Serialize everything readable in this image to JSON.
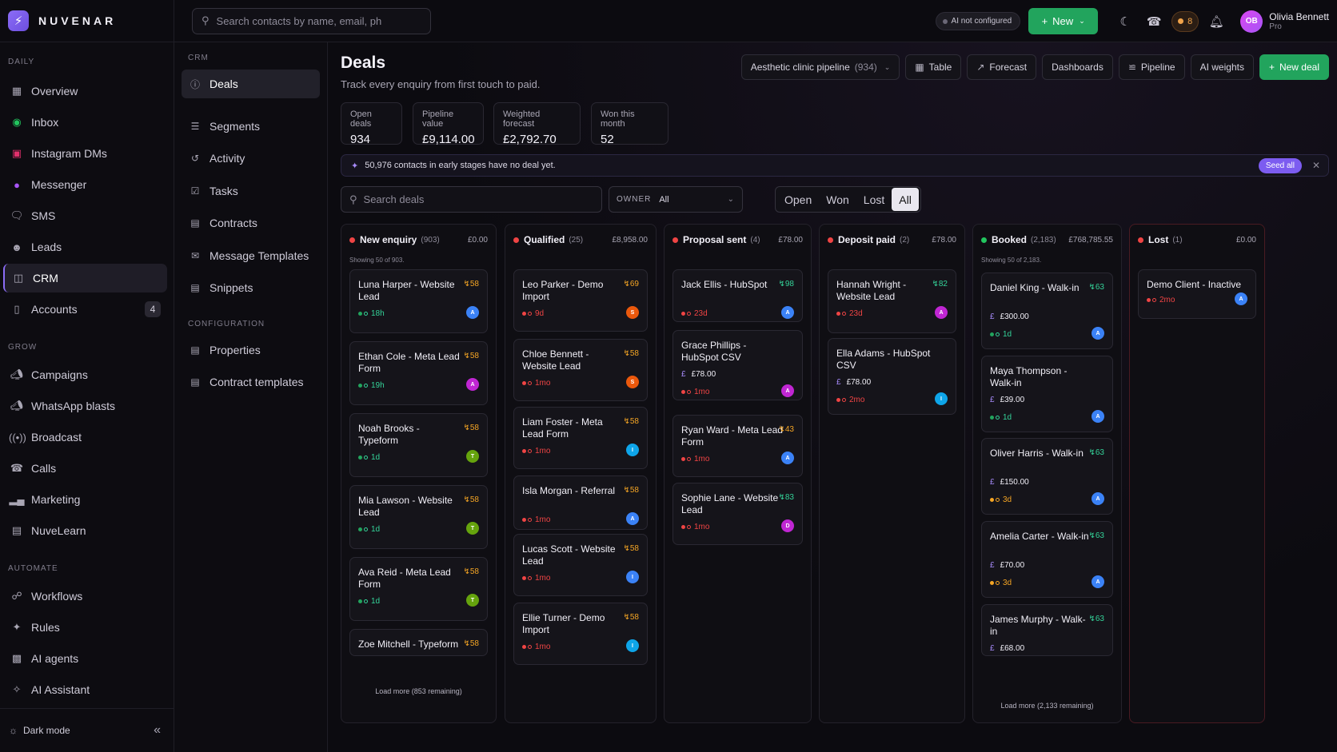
{
  "brand": {
    "name": "NUVENAR"
  },
  "topbar": {
    "search_placeholder": "Search contacts by name, email, ph",
    "ai_status": "AI not configured",
    "new_label": "New",
    "coin_count": "8",
    "user_initials": "OB",
    "user_name": "Olivia Bennett",
    "user_plan": "Pro"
  },
  "sidebar": {
    "sections": [
      {
        "label": "DAILY",
        "items": [
          {
            "label": "Overview",
            "icon": "grid-icon"
          },
          {
            "label": "Inbox",
            "icon": "whatsapp-icon"
          },
          {
            "label": "Instagram DMs",
            "icon": "instagram-icon"
          },
          {
            "label": "Messenger",
            "icon": "messenger-icon"
          },
          {
            "label": "SMS",
            "icon": "chat-bubble-icon"
          },
          {
            "label": "Leads",
            "icon": "users-icon"
          },
          {
            "label": "CRM",
            "icon": "briefcase-icon",
            "active": true
          },
          {
            "label": "Accounts",
            "icon": "phone-device-icon",
            "count": "4"
          }
        ]
      },
      {
        "label": "GROW",
        "items": [
          {
            "label": "Campaigns",
            "icon": "megaphone-icon"
          },
          {
            "label": "WhatsApp blasts",
            "icon": "megaphone-icon"
          },
          {
            "label": "Broadcast",
            "icon": "broadcast-icon"
          },
          {
            "label": "Calls",
            "icon": "phone-icon"
          },
          {
            "label": "Marketing",
            "icon": "bar-chart-icon"
          },
          {
            "label": "NuveLearn",
            "icon": "book-icon"
          }
        ]
      },
      {
        "label": "AUTOMATE",
        "items": [
          {
            "label": "Workflows",
            "icon": "workflow-icon"
          },
          {
            "label": "Rules",
            "icon": "sparkles-icon"
          },
          {
            "label": "AI agents",
            "icon": "robot-icon"
          },
          {
            "label": "AI Assistant",
            "icon": "sparkle-icon"
          }
        ]
      }
    ],
    "footer_label": "Dark mode"
  },
  "subnav": {
    "section_crm": "CRM",
    "crm_items": [
      {
        "label": "Deals",
        "active": true
      },
      {
        "label": "Segments"
      },
      {
        "label": "Activity"
      },
      {
        "label": "Tasks"
      },
      {
        "label": "Contracts"
      },
      {
        "label": "Message Templates"
      },
      {
        "label": "Snippets"
      }
    ],
    "section_config": "CONFIGURATION",
    "config_items": [
      {
        "label": "Properties"
      },
      {
        "label": "Contract templates"
      }
    ]
  },
  "page": {
    "title": "Deals",
    "subtitle": "Track every enquiry from first touch to paid.",
    "pipeline_label": "Aesthetic clinic pipeline",
    "pipeline_count": "(934)",
    "toolbar": {
      "table": "Table",
      "forecast": "Forecast",
      "dashboards": "Dashboards",
      "pipeline": "Pipeline",
      "ai_weights": "AI weights",
      "new_deal": "New deal"
    }
  },
  "stats": [
    {
      "label": "Open deals",
      "value": "934"
    },
    {
      "label": "Pipeline value",
      "value": "£9,114.00"
    },
    {
      "label": "Weighted forecast",
      "value": "£2,792.70"
    },
    {
      "label": "Won this month",
      "value": "52"
    }
  ],
  "banner": {
    "text": "50,976 contacts in early stages have no deal yet.",
    "action": "Seed all"
  },
  "filters": {
    "search_placeholder": "Search deals",
    "owner_key": "OWNER",
    "owner_value": "All",
    "status_options": [
      "Open",
      "Won",
      "Lost",
      "All"
    ],
    "status_selected": "All"
  },
  "colors": {
    "accent": "#8b6cf6",
    "green": "#22a45d",
    "red": "#ef4444",
    "amber": "#f5a524",
    "score_green": "#34d399"
  },
  "columns": [
    {
      "name": "New enquiry",
      "count": "(903)",
      "total": "£0.00",
      "dot": "#ef4444",
      "showing": "Showing 50 of 903.",
      "load_more": "Load more (853 remaining)",
      "cards": [
        {
          "title": "Luna Harper - Website Lead",
          "score": "58",
          "age": "18h",
          "status": "green",
          "avatar": "A",
          "av_color": "#3b82f6"
        },
        {
          "title": "Ethan Cole - Meta Lead Form",
          "score": "58",
          "age": "19h",
          "status": "green",
          "avatar": "A",
          "av_color": "#c026d3"
        },
        {
          "title": "Noah Brooks - Typeform",
          "score": "58",
          "age": "1d",
          "status": "green",
          "avatar": "T",
          "av_color": "#65a30d"
        },
        {
          "title": "Mia Lawson - Website Lead",
          "score": "58",
          "age": "1d",
          "status": "green",
          "avatar": "T",
          "av_color": "#65a30d"
        },
        {
          "title": "Ava Reid - Meta Lead Form",
          "score": "58",
          "age": "1d",
          "status": "green",
          "avatar": "T",
          "av_color": "#65a30d"
        },
        {
          "title": "Zoe Mitchell - Typeform",
          "score": "58"
        }
      ]
    },
    {
      "name": "Qualified",
      "count": "(25)",
      "total": "£8,958.00",
      "dot": "#ef4444",
      "cards": [
        {
          "title": "Leo Parker - Demo Import",
          "score": "69",
          "age": "9d",
          "status": "red",
          "avatar": "S",
          "av_color": "#ea580c"
        },
        {
          "title": "Chloe Bennett - Website Lead",
          "score": "58",
          "age": "1mo",
          "status": "red",
          "avatar": "S",
          "av_color": "#ea580c"
        },
        {
          "title": "Liam Foster - Meta Lead Form",
          "score": "58",
          "age": "1mo",
          "status": "red",
          "avatar": "I",
          "av_color": "#0ea5e9"
        },
        {
          "title": "Isla Morgan - Referral",
          "score": "58",
          "age": "1mo",
          "status": "red",
          "avatar": "A",
          "av_color": "#3b82f6"
        },
        {
          "title": "Lucas Scott - Website Lead",
          "score": "58",
          "age": "1mo",
          "status": "red",
          "avatar": "I",
          "av_color": "#3b82f6"
        },
        {
          "title": "Ellie Turner - Demo Import",
          "score": "58",
          "age": "1mo",
          "status": "red",
          "avatar": "I",
          "av_color": "#0ea5e9"
        }
      ]
    },
    {
      "name": "Proposal sent",
      "count": "(4)",
      "total": "£78.00",
      "dot": "#ef4444",
      "cards": [
        {
          "title": "Jack Ellis - HubSpot",
          "score": "98",
          "age": "23d",
          "status": "red",
          "avatar": "A",
          "av_color": "#3b82f6"
        },
        {
          "title": "Grace Phillips - HubSpot CSV",
          "amount": "£78.00",
          "age": "1mo",
          "status": "red",
          "avatar": "A",
          "av_color": "#c026d3"
        },
        {
          "title": "Ryan Ward - Meta Lead Form",
          "score": "43",
          "age": "1mo",
          "status": "red",
          "avatar": "A",
          "av_color": "#3b82f6"
        },
        {
          "title": "Sophie Lane - Website Lead",
          "score": "83",
          "age": "1mo",
          "status": "red",
          "avatar": "D",
          "av_color": "#c026d3"
        }
      ]
    },
    {
      "name": "Deposit paid",
      "count": "(2)",
      "total": "£78.00",
      "dot": "#ef4444",
      "cards": [
        {
          "title": "Hannah Wright - Website Lead",
          "score": "82",
          "age": "23d",
          "status": "red",
          "avatar": "A",
          "av_color": "#c026d3"
        },
        {
          "title": "Ella Adams - HubSpot CSV",
          "amount": "£78.00",
          "age": "2mo",
          "status": "red",
          "avatar": "I",
          "av_color": "#0ea5e9"
        }
      ]
    },
    {
      "name": "Booked",
      "count": "(2,183)",
      "total": "£768,785.55",
      "dot": "#22c55e",
      "showing": "Showing 50 of 2,183.",
      "load_more": "Load more (2,133 remaining)",
      "cards": [
        {
          "title": "Daniel King - Walk-in",
          "score": "63",
          "amount": "£300.00",
          "age": "1d",
          "status": "green",
          "avatar": "A",
          "av_color": "#3b82f6"
        },
        {
          "title": "Maya Thompson - Walk-in",
          "amount": "£39.00",
          "age": "1d",
          "status": "green",
          "avatar": "A",
          "av_color": "#3b82f6"
        },
        {
          "title": "Oliver Harris - Walk-in",
          "score": "63",
          "amount": "£150.00",
          "age": "3d",
          "status": "amber",
          "avatar": "A",
          "av_color": "#3b82f6"
        },
        {
          "title": "Amelia Carter - Walk-in",
          "score": "63",
          "amount": "£70.00",
          "age": "3d",
          "status": "amber",
          "avatar": "A",
          "av_color": "#3b82f6"
        },
        {
          "title": "James Murphy - Walk-in",
          "score": "63",
          "amount": "£68.00"
        }
      ]
    },
    {
      "name": "Lost",
      "count": "(1)",
      "total": "£0.00",
      "dot": "#ef4444",
      "cards": [
        {
          "title": "Demo Client - Inactive",
          "age": "2mo",
          "status": "red",
          "avatar": "A",
          "av_color": "#3b82f6"
        }
      ]
    }
  ]
}
